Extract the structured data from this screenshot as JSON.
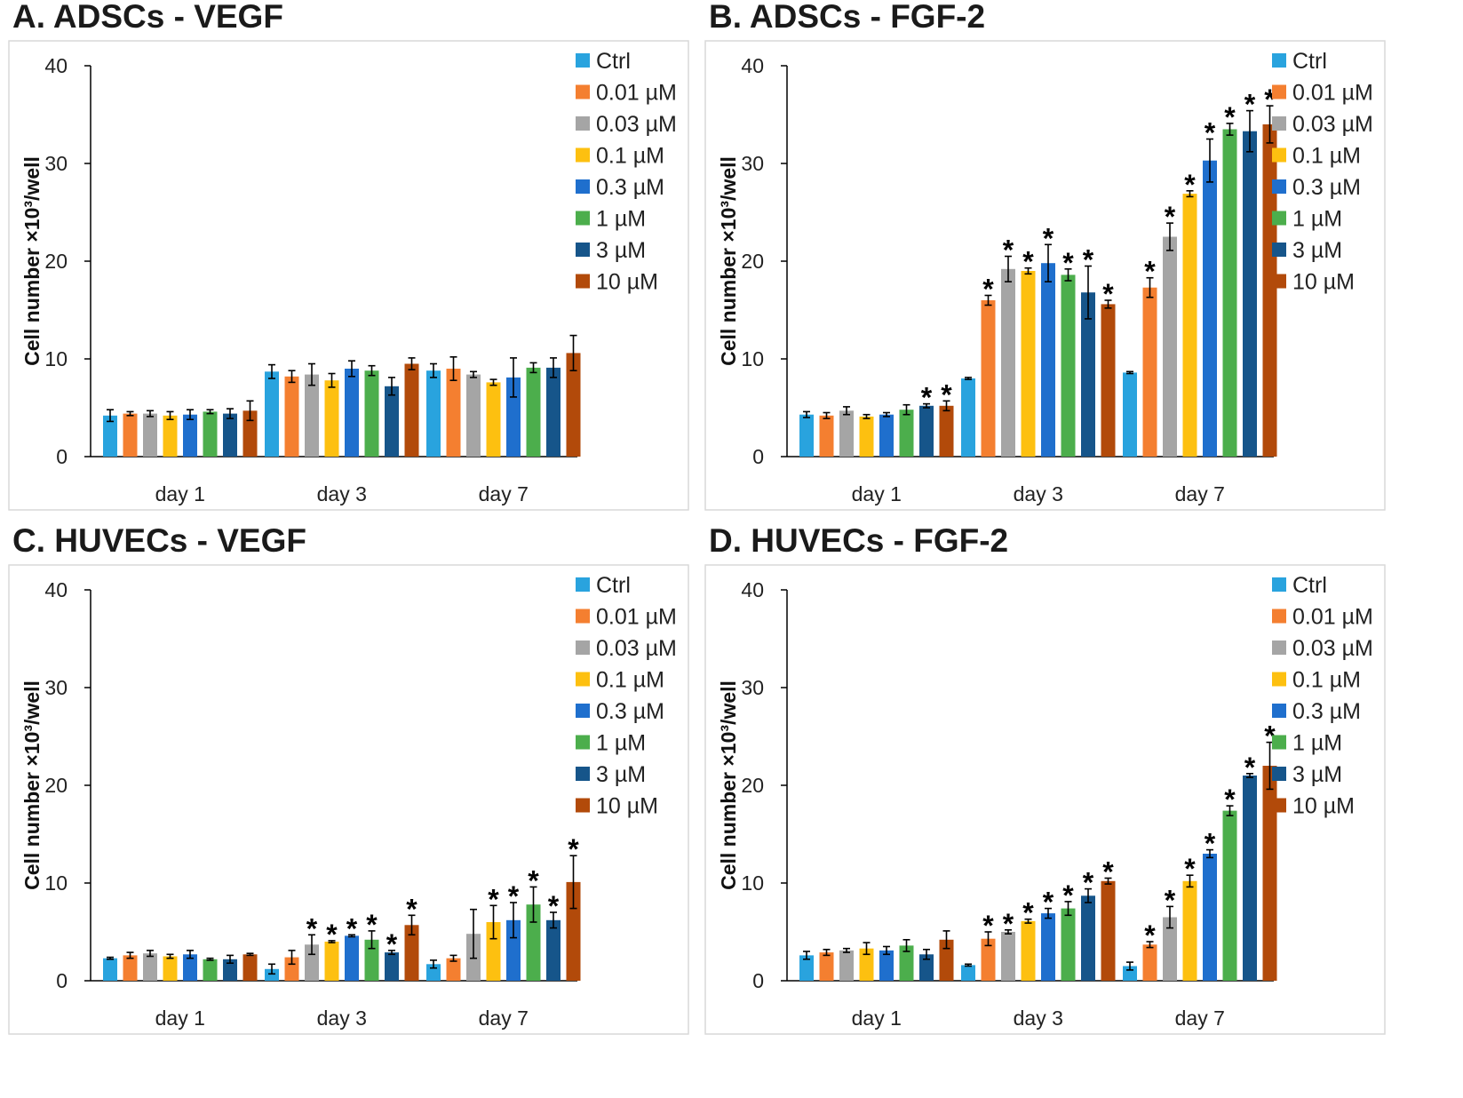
{
  "figure": {
    "series_names": [
      "Ctrl",
      "0.01 µM",
      "0.03 µM",
      "0.1 µM",
      "0.3 µM",
      "1 µM",
      "3 µM",
      "10 µM"
    ],
    "colors": [
      "#29a3de",
      "#f47f30",
      "#a5a5a5",
      "#fdc010",
      "#1f6fcd",
      "#4cae4c",
      "#16558a",
      "#b24a0a"
    ]
  },
  "chart_data": [
    {
      "type": "bar",
      "title": "A. ADSCs - VEGF",
      "ylabel": "Cell number ×10³/well",
      "xlabel": "",
      "ylim": [
        0,
        40
      ],
      "yticks": [
        "0",
        "10",
        "20",
        "30",
        "40"
      ],
      "categories": [
        "day 1",
        "day 3",
        "day 7"
      ],
      "legend_position": "top-right",
      "series": [
        {
          "name": "Ctrl",
          "values": [
            4.2,
            8.7,
            8.8
          ],
          "errors": [
            0.6,
            0.7,
            0.7
          ],
          "sig": [
            false,
            false,
            false
          ]
        },
        {
          "name": "0.01 µM",
          "values": [
            4.4,
            8.2,
            9.0
          ],
          "errors": [
            0.2,
            0.6,
            1.2
          ],
          "sig": [
            false,
            false,
            false
          ]
        },
        {
          "name": "0.03 µM",
          "values": [
            4.4,
            8.4,
            8.4
          ],
          "errors": [
            0.3,
            1.1,
            0.3
          ],
          "sig": [
            false,
            false,
            false
          ]
        },
        {
          "name": "0.1 µM",
          "values": [
            4.2,
            7.8,
            7.6
          ],
          "errors": [
            0.4,
            0.7,
            0.3
          ],
          "sig": [
            false,
            false,
            false
          ]
        },
        {
          "name": "0.3 µM",
          "values": [
            4.3,
            9.0,
            8.1
          ],
          "errors": [
            0.5,
            0.8,
            2.0
          ],
          "sig": [
            false,
            false,
            false
          ]
        },
        {
          "name": "1 µM",
          "values": [
            4.6,
            8.8,
            9.1
          ],
          "errors": [
            0.2,
            0.5,
            0.5
          ],
          "sig": [
            false,
            false,
            false
          ]
        },
        {
          "name": "3 µM",
          "values": [
            4.4,
            7.2,
            9.1
          ],
          "errors": [
            0.5,
            0.9,
            1.0
          ],
          "sig": [
            false,
            false,
            false
          ]
        },
        {
          "name": "10 µM",
          "values": [
            4.7,
            9.5,
            10.6
          ],
          "errors": [
            1.0,
            0.6,
            1.8
          ],
          "sig": [
            false,
            false,
            false
          ]
        }
      ]
    },
    {
      "type": "bar",
      "title": "B. ADSCs - FGF-2",
      "ylabel": "Cell number ×10³/well",
      "xlabel": "",
      "ylim": [
        0,
        40
      ],
      "yticks": [
        "0",
        "10",
        "20",
        "30",
        "40"
      ],
      "categories": [
        "day 1",
        "day 3",
        "day 7"
      ],
      "legend_position": "top-right",
      "series": [
        {
          "name": "Ctrl",
          "values": [
            4.3,
            8.0,
            8.6
          ],
          "errors": [
            0.3,
            0.1,
            0.1
          ],
          "sig": [
            false,
            false,
            false
          ]
        },
        {
          "name": "0.01 µM",
          "values": [
            4.2,
            16.0,
            17.3
          ],
          "errors": [
            0.3,
            0.5,
            1.0
          ],
          "sig": [
            false,
            true,
            true
          ]
        },
        {
          "name": "0.03 µM",
          "values": [
            4.7,
            19.2,
            22.5
          ],
          "errors": [
            0.4,
            1.3,
            1.4
          ],
          "sig": [
            false,
            true,
            true
          ]
        },
        {
          "name": "0.1 µM",
          "values": [
            4.1,
            19.0,
            26.9
          ],
          "errors": [
            0.2,
            0.3,
            0.3
          ],
          "sig": [
            false,
            true,
            true
          ]
        },
        {
          "name": "0.3 µM",
          "values": [
            4.3,
            19.8,
            30.3
          ],
          "errors": [
            0.2,
            1.9,
            2.2
          ],
          "sig": [
            false,
            true,
            true
          ]
        },
        {
          "name": "1 µM",
          "values": [
            4.8,
            18.6,
            33.5
          ],
          "errors": [
            0.5,
            0.6,
            0.6
          ],
          "sig": [
            false,
            true,
            true
          ]
        },
        {
          "name": "3 µM",
          "values": [
            5.2,
            16.8,
            33.3
          ],
          "errors": [
            0.2,
            2.7,
            2.1
          ],
          "sig": [
            true,
            true,
            true
          ]
        },
        {
          "name": "10 µM",
          "values": [
            5.2,
            15.6,
            34.0
          ],
          "errors": [
            0.5,
            0.4,
            1.9
          ],
          "sig": [
            true,
            true,
            true
          ]
        }
      ]
    },
    {
      "type": "bar",
      "title": "C. HUVECs - VEGF",
      "ylabel": "Cell number ×10³/well",
      "xlabel": "",
      "ylim": [
        0,
        40
      ],
      "yticks": [
        "0",
        "10",
        "20",
        "30",
        "40"
      ],
      "categories": [
        "day 1",
        "day 3",
        "day 7"
      ],
      "legend_position": "top-right",
      "series": [
        {
          "name": "Ctrl",
          "values": [
            2.3,
            1.2,
            1.7
          ],
          "errors": [
            0.1,
            0.5,
            0.4
          ],
          "sig": [
            false,
            false,
            false
          ]
        },
        {
          "name": "0.01 µM",
          "values": [
            2.6,
            2.4,
            2.3
          ],
          "errors": [
            0.3,
            0.7,
            0.3
          ],
          "sig": [
            false,
            false,
            false
          ]
        },
        {
          "name": "0.03 µM",
          "values": [
            2.8,
            3.7,
            4.8
          ],
          "errors": [
            0.3,
            1.0,
            2.5
          ],
          "sig": [
            false,
            true,
            false
          ]
        },
        {
          "name": "0.1 µM",
          "values": [
            2.5,
            4.0,
            6.0
          ],
          "errors": [
            0.2,
            0.1,
            1.7
          ],
          "sig": [
            false,
            true,
            true
          ]
        },
        {
          "name": "0.3 µM",
          "values": [
            2.7,
            4.6,
            6.2
          ],
          "errors": [
            0.4,
            0.1,
            1.8
          ],
          "sig": [
            false,
            true,
            true
          ]
        },
        {
          "name": "1 µM",
          "values": [
            2.2,
            4.2,
            7.8
          ],
          "errors": [
            0.1,
            0.9,
            1.8
          ],
          "sig": [
            false,
            true,
            true
          ]
        },
        {
          "name": "3 µM",
          "values": [
            2.2,
            2.9,
            6.2
          ],
          "errors": [
            0.4,
            0.2,
            0.8
          ],
          "sig": [
            false,
            true,
            true
          ]
        },
        {
          "name": "10 µM",
          "values": [
            2.7,
            5.7,
            10.1
          ],
          "errors": [
            0.1,
            1.0,
            2.7
          ],
          "sig": [
            false,
            true,
            true
          ]
        }
      ]
    },
    {
      "type": "bar",
      "title": "D. HUVECs - FGF-2",
      "ylabel": "Cell number ×10³/well",
      "xlabel": "",
      "ylim": [
        0,
        40
      ],
      "yticks": [
        "0",
        "10",
        "20",
        "30",
        "40"
      ],
      "categories": [
        "day 1",
        "day 3",
        "day 7"
      ],
      "legend_position": "top-right",
      "series": [
        {
          "name": "Ctrl",
          "values": [
            2.6,
            1.6,
            1.5
          ],
          "errors": [
            0.4,
            0.1,
            0.4
          ],
          "sig": [
            false,
            false,
            false
          ]
        },
        {
          "name": "0.01 µM",
          "values": [
            2.9,
            4.3,
            3.7
          ],
          "errors": [
            0.3,
            0.7,
            0.3
          ],
          "sig": [
            false,
            true,
            true
          ]
        },
        {
          "name": "0.03 µM",
          "values": [
            3.1,
            5.0,
            6.5
          ],
          "errors": [
            0.2,
            0.2,
            1.1
          ],
          "sig": [
            false,
            true,
            true
          ]
        },
        {
          "name": "0.1 µM",
          "values": [
            3.3,
            6.1,
            10.2
          ],
          "errors": [
            0.6,
            0.2,
            0.6
          ],
          "sig": [
            false,
            true,
            true
          ]
        },
        {
          "name": "0.3 µM",
          "values": [
            3.1,
            6.9,
            13.0
          ],
          "errors": [
            0.4,
            0.5,
            0.4
          ],
          "sig": [
            false,
            true,
            true
          ]
        },
        {
          "name": "1 µM",
          "values": [
            3.6,
            7.4,
            17.4
          ],
          "errors": [
            0.6,
            0.7,
            0.5
          ],
          "sig": [
            false,
            true,
            true
          ]
        },
        {
          "name": "3 µM",
          "values": [
            2.7,
            8.7,
            21.0
          ],
          "errors": [
            0.5,
            0.7,
            0.2
          ],
          "sig": [
            false,
            true,
            true
          ]
        },
        {
          "name": "10 µM",
          "values": [
            4.2,
            10.2,
            22.0
          ],
          "errors": [
            0.9,
            0.3,
            2.4
          ],
          "sig": [
            false,
            true,
            true
          ]
        }
      ]
    }
  ]
}
